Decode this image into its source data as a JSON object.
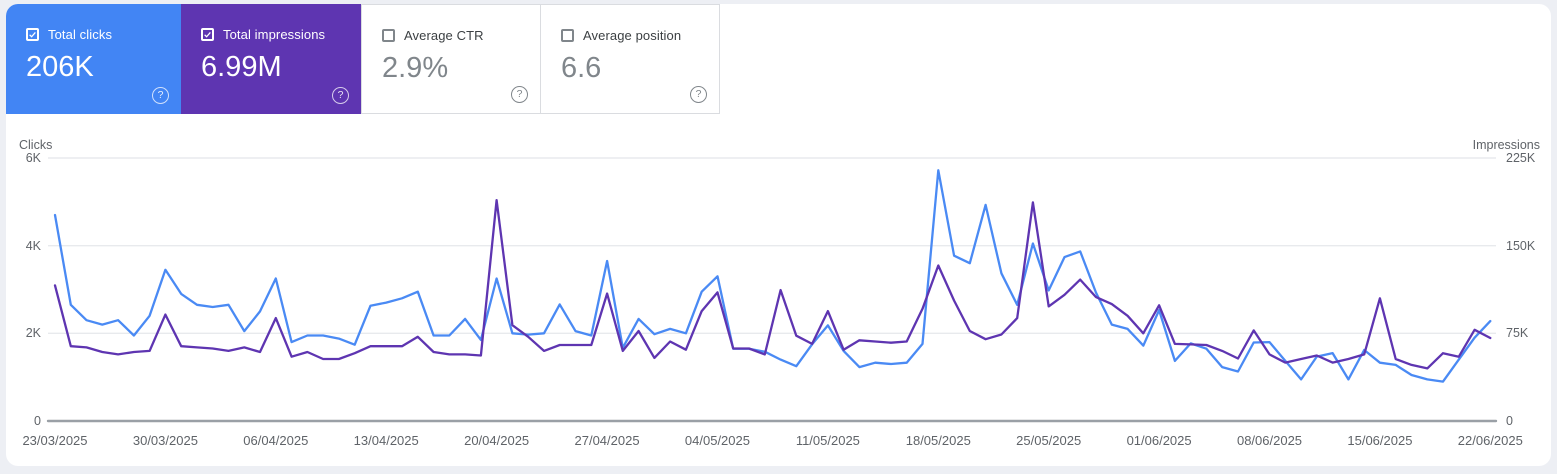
{
  "cards": [
    {
      "label": "Total clicks",
      "value": "206K",
      "selected": true,
      "bg": "#4285f4"
    },
    {
      "label": "Total impressions",
      "value": "6.99M",
      "selected": true,
      "bg": "#5e35b1"
    },
    {
      "label": "Average CTR",
      "value": "2.9%",
      "selected": false,
      "bg": "#ffffff"
    },
    {
      "label": "Average position",
      "value": "6.6",
      "selected": false,
      "bg": "#ffffff"
    }
  ],
  "help_icon_glyph": "?",
  "chart": {
    "left_axis": {
      "title": "Clicks",
      "tick_labels": [
        "6K",
        "4K",
        "2K",
        "0"
      ]
    },
    "right_axis": {
      "title": "Impressions",
      "tick_labels": [
        "225K",
        "150K",
        "75K",
        "0"
      ]
    },
    "x_labels": [
      "23/03/2025",
      "30/03/2025",
      "06/04/2025",
      "13/04/2025",
      "20/04/2025",
      "27/04/2025",
      "04/05/2025",
      "11/05/2025",
      "18/05/2025",
      "25/05/2025",
      "01/06/2025",
      "08/06/2025",
      "15/06/2025",
      "22/06/2025"
    ]
  },
  "chart_data": {
    "type": "line",
    "title": "Search performance over time (daily)",
    "x_tick_labels": [
      "23/03/2025",
      "30/03/2025",
      "06/04/2025",
      "13/04/2025",
      "20/04/2025",
      "27/04/2025",
      "04/05/2025",
      "11/05/2025",
      "18/05/2025",
      "25/05/2025",
      "01/06/2025",
      "08/06/2025",
      "15/06/2025",
      "22/06/2025"
    ],
    "points_per_series": 92,
    "left_axis": {
      "label": "Clicks",
      "range": [
        0,
        6000
      ],
      "ticks": [
        0,
        2000,
        4000,
        6000
      ]
    },
    "right_axis": {
      "label": "Impressions",
      "range": [
        0,
        225000
      ],
      "ticks": [
        0,
        75000,
        150000,
        225000
      ]
    },
    "grid": "horizontal gridlines only",
    "legend": "none (metric cards act as series toggles)",
    "series": [
      {
        "name": "Clicks",
        "axis": "left",
        "color": "#4a8af4",
        "values": [
          4700,
          2650,
          2300,
          2200,
          2300,
          1950,
          2400,
          3450,
          2900,
          2650,
          2600,
          2650,
          2050,
          2500,
          3250,
          1800,
          1950,
          1950,
          1880,
          1740,
          2630,
          2700,
          2800,
          2950,
          1950,
          1950,
          2330,
          1850,
          3250,
          2000,
          1970,
          2000,
          2660,
          2050,
          1950,
          3650,
          1670,
          2330,
          1980,
          2100,
          2000,
          2950,
          3300,
          1650,
          1650,
          1580,
          1400,
          1250,
          1750,
          2180,
          1600,
          1230,
          1330,
          1300,
          1330,
          1760,
          5720,
          3770,
          3600,
          4930,
          3370,
          2650,
          4050,
          2980,
          3740,
          3870,
          2930,
          2200,
          2100,
          1720,
          2530,
          1370,
          1770,
          1650,
          1230,
          1130,
          1790,
          1800,
          1370,
          950,
          1470,
          1550,
          950,
          1620,
          1330,
          1280,
          1050,
          950,
          900,
          1400,
          1900,
          2280
        ]
      },
      {
        "name": "Impressions",
        "axis": "right",
        "color": "#5e35b1",
        "values": [
          116000,
          64000,
          63000,
          59000,
          57000,
          59000,
          60000,
          91000,
          64000,
          63000,
          62000,
          60000,
          63000,
          59000,
          88000,
          55000,
          59000,
          53000,
          53000,
          58000,
          64000,
          64000,
          64000,
          72000,
          59000,
          57000,
          57000,
          56000,
          189000,
          82000,
          72000,
          60000,
          65000,
          65000,
          65000,
          109000,
          60000,
          77000,
          54000,
          68000,
          61000,
          94000,
          110000,
          62000,
          62000,
          57000,
          112000,
          73000,
          66000,
          94000,
          61000,
          69000,
          68000,
          67000,
          68000,
          96000,
          133000,
          103000,
          77000,
          70000,
          74000,
          88000,
          187000,
          98000,
          108000,
          121000,
          106000,
          100000,
          90000,
          75000,
          99000,
          66000,
          65500,
          65000,
          60000,
          53500,
          77500,
          57000,
          50000,
          53000,
          56000,
          50000,
          53000,
          57000,
          105000,
          53000,
          48000,
          45000,
          58000,
          55000,
          78000,
          71000
        ]
      }
    ]
  },
  "colors": {
    "clicks_blue": "#4285f4",
    "impressions_purple": "#5e35b1",
    "grid": "#e8eaed",
    "axis_line": "#9aa0a6",
    "text_gray": "#5f6368",
    "value_gray": "#80868b",
    "border_gray": "#dadce0",
    "page_bg": "#edeff4"
  }
}
